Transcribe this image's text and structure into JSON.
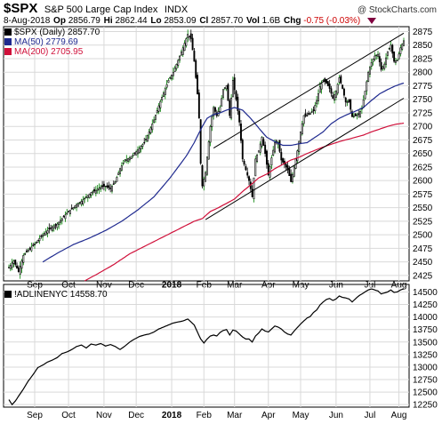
{
  "header": {
    "symbol": "$SPX",
    "name": "S&P 500 Large Cap Index",
    "exchange": "INDX",
    "credit": "@ StockCharts.com",
    "date": "8-Aug-2018",
    "open_label": "Op",
    "open": "2856.79",
    "high_label": "Hi",
    "high": "2862.44",
    "low_label": "Lo",
    "low": "2853.09",
    "close_label": "Cl",
    "close": "2857.70",
    "vol_label": "Vol",
    "vol": "1.6B",
    "chg_label": "Chg",
    "chg": "-0.75 (-0.03%)"
  },
  "legend": {
    "price": "$SPX (Daily) 2857.70",
    "ma50": "MA(50) 2779.69",
    "ma200": "MA(200) 2705.95",
    "adline": "!ADLINENYC 14558.70"
  },
  "colors": {
    "candle": "#000000",
    "up_wick": "#008000",
    "ma50": "#1f2a8f",
    "ma200": "#d0103a",
    "channel": "#000000",
    "grid": "#d9d9d9"
  },
  "chart_data": [
    {
      "type": "candlestick",
      "y_ticks": [
        2425,
        2450,
        2475,
        2500,
        2525,
        2550,
        2575,
        2600,
        2625,
        2650,
        2675,
        2700,
        2725,
        2750,
        2775,
        2800,
        2825,
        2850,
        2875
      ],
      "ylim": [
        2415,
        2884
      ],
      "x_labels": [
        "Sep",
        "Oct",
        "Nov",
        "Dec",
        "2018",
        "Feb",
        "Mar",
        "Apr",
        "May",
        "Jun",
        "Jul",
        "Aug"
      ],
      "price_path": [
        [
          0,
          2440
        ],
        [
          3,
          2452
        ],
        [
          6,
          2432
        ],
        [
          9,
          2462
        ],
        [
          12,
          2472
        ],
        [
          15,
          2480
        ],
        [
          18,
          2490
        ],
        [
          21,
          2500
        ],
        [
          24,
          2508
        ],
        [
          27,
          2515
        ],
        [
          30,
          2520
        ],
        [
          33,
          2530
        ],
        [
          36,
          2540
        ],
        [
          39,
          2548
        ],
        [
          42,
          2556
        ],
        [
          45,
          2562
        ],
        [
          48,
          2570
        ],
        [
          51,
          2578
        ],
        [
          54,
          2582
        ],
        [
          57,
          2588
        ],
        [
          60,
          2590
        ],
        [
          63,
          2585
        ],
        [
          66,
          2598
        ],
        [
          69,
          2622
        ],
        [
          72,
          2638
        ],
        [
          75,
          2642
        ],
        [
          78,
          2650
        ],
        [
          81,
          2660
        ],
        [
          84,
          2670
        ],
        [
          87,
          2690
        ],
        [
          90,
          2712
        ],
        [
          93,
          2738
        ],
        [
          96,
          2762
        ],
        [
          99,
          2785
        ],
        [
          102,
          2800
        ],
        [
          105,
          2822
        ],
        [
          108,
          2845
        ],
        [
          111,
          2870
        ],
        [
          113,
          2862
        ],
        [
          115,
          2820
        ],
        [
          117,
          2760
        ],
        [
          118,
          2715
        ],
        [
          119,
          2632
        ],
        [
          120,
          2590
        ],
        [
          122,
          2615
        ],
        [
          125,
          2700
        ],
        [
          127,
          2735
        ],
        [
          129,
          2720
        ],
        [
          131,
          2735
        ],
        [
          133,
          2768
        ],
        [
          135,
          2775
        ],
        [
          137,
          2720
        ],
        [
          139,
          2785
        ],
        [
          141,
          2750
        ],
        [
          143,
          2708
        ],
        [
          145,
          2640
        ],
        [
          147,
          2620
        ],
        [
          149,
          2600
        ],
        [
          151,
          2570
        ],
        [
          153,
          2640
        ],
        [
          155,
          2655
        ],
        [
          157,
          2680
        ],
        [
          159,
          2650
        ],
        [
          161,
          2610
        ],
        [
          163,
          2642
        ],
        [
          165,
          2670
        ],
        [
          167,
          2670
        ],
        [
          169,
          2638
        ],
        [
          171,
          2630
        ],
        [
          173,
          2620
        ],
        [
          175,
          2598
        ],
        [
          177,
          2625
        ],
        [
          179,
          2655
        ],
        [
          181,
          2690
        ],
        [
          183,
          2720
        ],
        [
          185,
          2720
        ],
        [
          187,
          2725
        ],
        [
          189,
          2730
        ],
        [
          191,
          2748
        ],
        [
          193,
          2773
        ],
        [
          195,
          2785
        ],
        [
          197,
          2780
        ],
        [
          199,
          2770
        ],
        [
          201,
          2752
        ],
        [
          203,
          2765
        ],
        [
          205,
          2790
        ],
        [
          207,
          2770
        ],
        [
          209,
          2745
        ],
        [
          211,
          2745
        ],
        [
          213,
          2718
        ],
        [
          215,
          2720
        ],
        [
          217,
          2722
        ],
        [
          219,
          2733
        ],
        [
          221,
          2765
        ],
        [
          223,
          2800
        ],
        [
          225,
          2818
        ],
        [
          227,
          2830
        ],
        [
          229,
          2833
        ],
        [
          231,
          2805
        ],
        [
          233,
          2815
        ],
        [
          235,
          2838
        ],
        [
          237,
          2850
        ],
        [
          239,
          2820
        ],
        [
          241,
          2822
        ],
        [
          243,
          2845
        ],
        [
          245,
          2858
        ]
      ],
      "ma50_path": [
        [
          21,
          2450
        ],
        [
          30,
          2466
        ],
        [
          40,
          2482
        ],
        [
          50,
          2494
        ],
        [
          60,
          2508
        ],
        [
          70,
          2525
        ],
        [
          80,
          2546
        ],
        [
          90,
          2570
        ],
        [
          100,
          2605
        ],
        [
          110,
          2645
        ],
        [
          115,
          2670
        ],
        [
          120,
          2700
        ],
        [
          123,
          2715
        ],
        [
          127,
          2722
        ],
        [
          131,
          2725
        ],
        [
          135,
          2730
        ],
        [
          140,
          2735
        ],
        [
          145,
          2730
        ],
        [
          150,
          2715
        ],
        [
          155,
          2697
        ],
        [
          160,
          2680
        ],
        [
          165,
          2672
        ],
        [
          170,
          2665
        ],
        [
          175,
          2665
        ],
        [
          180,
          2668
        ],
        [
          185,
          2670
        ],
        [
          190,
          2680
        ],
        [
          195,
          2690
        ],
        [
          200,
          2705
        ],
        [
          205,
          2715
        ],
        [
          210,
          2722
        ],
        [
          215,
          2728
        ],
        [
          220,
          2735
        ],
        [
          225,
          2748
        ],
        [
          230,
          2760
        ],
        [
          235,
          2768
        ],
        [
          240,
          2775
        ],
        [
          245,
          2780
        ]
      ],
      "ma200_path": [
        [
          47,
          2415
        ],
        [
          55,
          2428
        ],
        [
          65,
          2445
        ],
        [
          75,
          2465
        ],
        [
          85,
          2480
        ],
        [
          95,
          2495
        ],
        [
          105,
          2510
        ],
        [
          115,
          2525
        ],
        [
          120,
          2530
        ],
        [
          125,
          2543
        ],
        [
          130,
          2550
        ],
        [
          135,
          2558
        ],
        [
          140,
          2566
        ],
        [
          145,
          2580
        ],
        [
          150,
          2592
        ],
        [
          155,
          2605
        ],
        [
          160,
          2612
        ],
        [
          165,
          2622
        ],
        [
          170,
          2630
        ],
        [
          175,
          2638
        ],
        [
          180,
          2643
        ],
        [
          185,
          2650
        ],
        [
          190,
          2656
        ],
        [
          195,
          2662
        ],
        [
          200,
          2667
        ],
        [
          205,
          2672
        ],
        [
          210,
          2676
        ],
        [
          215,
          2680
        ],
        [
          220,
          2684
        ],
        [
          225,
          2690
        ],
        [
          230,
          2695
        ],
        [
          235,
          2700
        ],
        [
          240,
          2704
        ],
        [
          245,
          2706
        ]
      ],
      "channel_lines": [
        {
          "from": [
            127,
            2660
          ],
          "to": [
            245,
            2872
          ]
        },
        {
          "from": [
            122,
            2528
          ],
          "to": [
            245,
            2752
          ]
        }
      ]
    },
    {
      "type": "line",
      "y_ticks": [
        12250,
        12500,
        12750,
        13000,
        13250,
        13500,
        13750,
        14000,
        14250,
        14500
      ],
      "ylim": [
        12200,
        14650
      ],
      "x_labels": [
        "Sep",
        "Oct",
        "Nov",
        "Dec",
        "2018",
        "Feb",
        "Mar",
        "Apr",
        "May",
        "Jun",
        "Jul",
        "Aug"
      ],
      "path": [
        [
          0,
          12350
        ],
        [
          2,
          12250
        ],
        [
          4,
          12320
        ],
        [
          6,
          12420
        ],
        [
          9,
          12560
        ],
        [
          12,
          12720
        ],
        [
          15,
          12850
        ],
        [
          18,
          12990
        ],
        [
          21,
          13040
        ],
        [
          24,
          13100
        ],
        [
          27,
          13140
        ],
        [
          30,
          13190
        ],
        [
          33,
          13270
        ],
        [
          36,
          13300
        ],
        [
          39,
          13350
        ],
        [
          42,
          13410
        ],
        [
          45,
          13440
        ],
        [
          48,
          13380
        ],
        [
          51,
          13460
        ],
        [
          54,
          13440
        ],
        [
          57,
          13470
        ],
        [
          60,
          13420
        ],
        [
          63,
          13450
        ],
        [
          66,
          13410
        ],
        [
          69,
          13350
        ],
        [
          72,
          13420
        ],
        [
          75,
          13500
        ],
        [
          78,
          13560
        ],
        [
          81,
          13610
        ],
        [
          84,
          13640
        ],
        [
          87,
          13660
        ],
        [
          90,
          13700
        ],
        [
          93,
          13760
        ],
        [
          96,
          13800
        ],
        [
          99,
          13840
        ],
        [
          102,
          13880
        ],
        [
          105,
          13900
        ],
        [
          108,
          13920
        ],
        [
          111,
          13960
        ],
        [
          113,
          13900
        ],
        [
          115,
          13840
        ],
        [
          117,
          13700
        ],
        [
          119,
          13560
        ],
        [
          121,
          13480
        ],
        [
          123,
          13560
        ],
        [
          125,
          13620
        ],
        [
          127,
          13640
        ],
        [
          129,
          13620
        ],
        [
          131,
          13690
        ],
        [
          133,
          13730
        ],
        [
          135,
          13750
        ],
        [
          137,
          13640
        ],
        [
          139,
          13740
        ],
        [
          141,
          13720
        ],
        [
          143,
          13660
        ],
        [
          145,
          13600
        ],
        [
          147,
          13560
        ],
        [
          149,
          13560
        ],
        [
          151,
          13500
        ],
        [
          153,
          13620
        ],
        [
          155,
          13680
        ],
        [
          157,
          13760
        ],
        [
          159,
          13720
        ],
        [
          161,
          13700
        ],
        [
          163,
          13760
        ],
        [
          165,
          13820
        ],
        [
          167,
          13800
        ],
        [
          169,
          13760
        ],
        [
          171,
          13700
        ],
        [
          173,
          13660
        ],
        [
          175,
          13640
        ],
        [
          177,
          13720
        ],
        [
          179,
          13790
        ],
        [
          181,
          13860
        ],
        [
          183,
          13920
        ],
        [
          185,
          13980
        ],
        [
          187,
          14010
        ],
        [
          189,
          14090
        ],
        [
          191,
          14140
        ],
        [
          193,
          14240
        ],
        [
          195,
          14300
        ],
        [
          197,
          14350
        ],
        [
          199,
          14370
        ],
        [
          201,
          14330
        ],
        [
          203,
          14360
        ],
        [
          205,
          14420
        ],
        [
          207,
          14390
        ],
        [
          209,
          14380
        ],
        [
          211,
          14360
        ],
        [
          213,
          14300
        ],
        [
          215,
          14360
        ],
        [
          217,
          14420
        ],
        [
          219,
          14460
        ],
        [
          221,
          14500
        ],
        [
          223,
          14540
        ],
        [
          225,
          14560
        ],
        [
          227,
          14540
        ],
        [
          229,
          14520
        ],
        [
          231,
          14460
        ],
        [
          233,
          14480
        ],
        [
          235,
          14500
        ],
        [
          237,
          14540
        ],
        [
          239,
          14490
        ],
        [
          241,
          14500
        ],
        [
          243,
          14540
        ],
        [
          245,
          14560
        ]
      ]
    }
  ]
}
